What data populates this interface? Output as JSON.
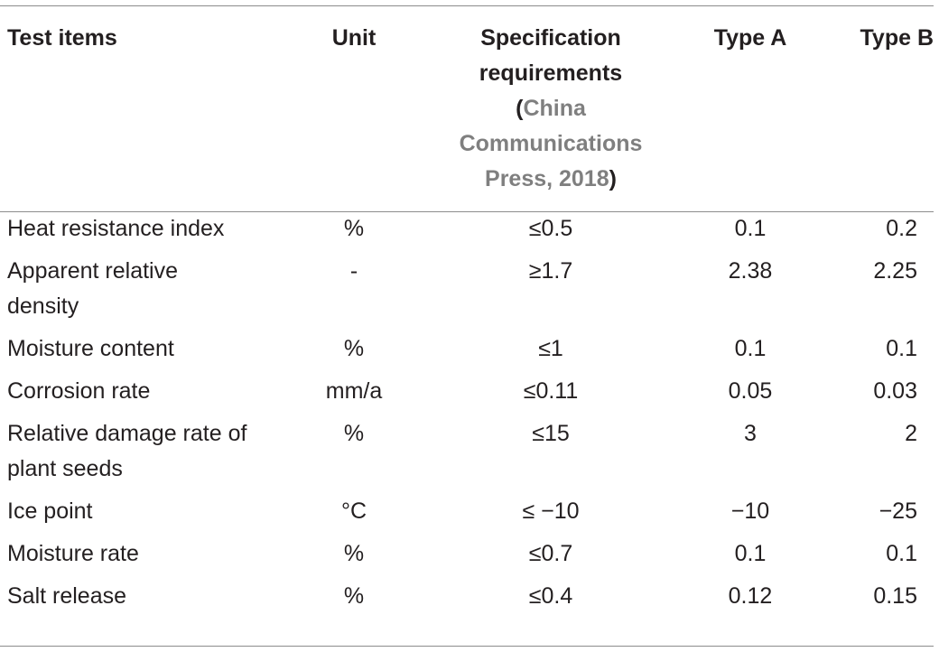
{
  "header": {
    "col_test_items": "Test items",
    "col_unit": "Unit",
    "col_spec_line1": "Specification",
    "col_spec_line2": "requirements",
    "col_spec_open": "(",
    "col_spec_cite": "China Communications Press, 2018",
    "col_spec_close": ")",
    "col_type_a": "Type A",
    "col_type_b": "Type B"
  },
  "rows": [
    {
      "item": "Heat resistance index",
      "unit": "%",
      "spec": "≤0.5",
      "type_a": "0.1",
      "type_b": "0.2"
    },
    {
      "item": "Apparent relative density",
      "unit": "-",
      "spec": "≥1.7",
      "type_a": "2.38",
      "type_b": "2.25"
    },
    {
      "item": "Moisture content",
      "unit": "%",
      "spec": "≤1",
      "type_a": "0.1",
      "type_b": "0.1"
    },
    {
      "item": "Corrosion rate",
      "unit": "mm/a",
      "spec": "≤0.11",
      "type_a": "0.05",
      "type_b": "0.03"
    },
    {
      "item": "Relative damage rate of plant seeds",
      "unit": "%",
      "spec": "≤15",
      "type_a": "3",
      "type_b": "2"
    },
    {
      "item": "Ice point",
      "unit": "°C",
      "spec": "≤ −10",
      "type_a": "−10",
      "type_b": "−25"
    },
    {
      "item": "Moisture rate",
      "unit": "%",
      "spec": "≤0.7",
      "type_a": "0.1",
      "type_b": "0.1"
    },
    {
      "item": "Salt release",
      "unit": "%",
      "spec": "≤0.4",
      "type_a": "0.12",
      "type_b": "0.15"
    }
  ]
}
